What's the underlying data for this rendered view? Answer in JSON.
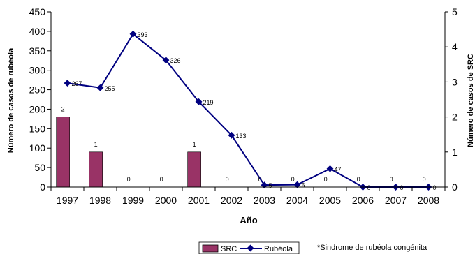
{
  "chart_data": {
    "type": "bar+line",
    "categories": [
      "1997",
      "1998",
      "1999",
      "2000",
      "2001",
      "2002",
      "2003",
      "2004",
      "2005",
      "2006",
      "2007",
      "2008"
    ],
    "series": [
      {
        "name": "SRC",
        "kind": "bar",
        "axis": "right",
        "color": "#993366",
        "values": [
          2,
          1,
          0,
          0,
          1,
          0,
          0,
          0,
          0,
          0,
          0,
          0
        ],
        "labels": [
          "2",
          "1",
          "0",
          "0",
          "1",
          "0",
          "0",
          "0",
          "0",
          "0",
          "0",
          "0"
        ]
      },
      {
        "name": "Rubéola",
        "kind": "line",
        "axis": "left",
        "color": "#000080",
        "values": [
          267,
          255,
          393,
          326,
          219,
          133,
          5,
          6,
          47,
          0,
          0,
          0
        ],
        "labels": [
          "267",
          "255",
          "393",
          "326",
          "219",
          "133",
          "5",
          "6",
          "47",
          "0",
          "0",
          "0"
        ]
      }
    ],
    "xlabel": "Año",
    "ylabel": "Número de casos de rubéola",
    "y2label": "Número de casos de SRC",
    "ylim": [
      0,
      450
    ],
    "y2lim": [
      0,
      5
    ],
    "yticks": [
      "0",
      "50",
      "100",
      "150",
      "200",
      "250",
      "300",
      "350",
      "400",
      "450"
    ],
    "y2ticks": [
      "0",
      "1",
      "2",
      "3",
      "4",
      "5"
    ],
    "legend_position": "bottom-center",
    "footnote": "*Sindrome de rubéola congénita"
  }
}
